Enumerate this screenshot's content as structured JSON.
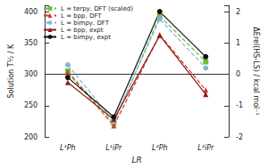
{
  "chart_data": {
    "type": "line",
    "x_label": "LR",
    "y_label": "Solution T½ / K",
    "y2_label": "ΔErel(HS-LS) / kcal mol⁻¹",
    "categories": [
      "L¹Ph",
      "L¹iPr",
      "L²Ph",
      "L²iPr"
    ],
    "ylim": [
      200,
      410
    ],
    "yticks": [
      200,
      250,
      300,
      350,
      400
    ],
    "y2lim": [
      -2,
      2.2
    ],
    "y2ticks": [
      -2,
      -1,
      0,
      1,
      2
    ],
    "legend": "upper left",
    "grid": false,
    "series": [
      {
        "name": "L = terpy, DFT (scaled)",
        "color": "#6abf3c",
        "marker": "square",
        "line_style": "dashed",
        "axis": "y2",
        "values": [
          0.1,
          -1.56,
          1.86,
          0.4
        ]
      },
      {
        "name": "L = bpp, DFT",
        "color": "#d9342b",
        "marker": "triangle",
        "line_style": "dashed",
        "axis": "y2",
        "values": [
          0.06,
          -1.64,
          1.26,
          -0.5
        ]
      },
      {
        "name": "L = bimpy, DFT",
        "color": "#86b4dc",
        "marker": "circle",
        "line_style": "dashed",
        "axis": "y2",
        "values": [
          0.3,
          -1.5,
          1.76,
          0.2
        ]
      },
      {
        "name": "L = bpp, expt",
        "color": "#8b1a1a",
        "marker": "triangle",
        "line_style": "solid",
        "axis": "y",
        "values": [
          287,
          228,
          362,
          268
        ]
      },
      {
        "name": "L = bimpy, expt",
        "color": "#111111",
        "marker": "circle",
        "line_style": "solid",
        "axis": "y",
        "values": [
          295,
          232,
          400,
          328
        ]
      }
    ]
  }
}
